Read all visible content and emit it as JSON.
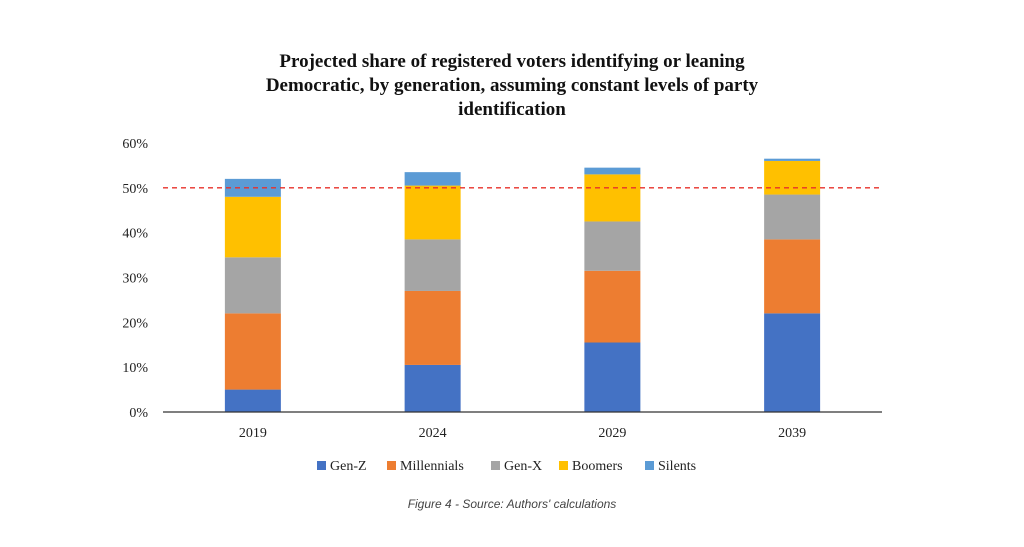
{
  "chart_data": {
    "type": "bar",
    "stacked": true,
    "title_lines": [
      "Projected share of registered voters identifying or leaning",
      "Democratic, by generation, assuming constant levels of party",
      "identification"
    ],
    "categories": [
      "2019",
      "2024",
      "2029",
      "2039"
    ],
    "series": [
      {
        "name": "Gen-Z",
        "color": "#4472C4",
        "values": [
          5,
          10.5,
          15.5,
          22
        ]
      },
      {
        "name": "Millennials",
        "color": "#ED7D31",
        "values": [
          17,
          16.5,
          16,
          16.5
        ]
      },
      {
        "name": "Gen-X",
        "color": "#A5A5A5",
        "values": [
          12.5,
          11.5,
          11,
          10
        ]
      },
      {
        "name": "Boomers",
        "color": "#FFC000",
        "values": [
          13.5,
          12,
          10.5,
          7.5
        ]
      },
      {
        "name": "Silents",
        "color": "#5B9BD5",
        "values": [
          4,
          3,
          1.5,
          0.5
        ]
      }
    ],
    "y_ticks": [
      "0%",
      "10%",
      "20%",
      "30%",
      "40%",
      "50%",
      "60%"
    ],
    "ylim": [
      0,
      60
    ],
    "reference_line": {
      "value": 50,
      "color": "#E8302A",
      "style": "dashed"
    },
    "legend_position": "bottom",
    "grid": false
  },
  "caption": "Figure 4 - Source: Authors' calculations"
}
